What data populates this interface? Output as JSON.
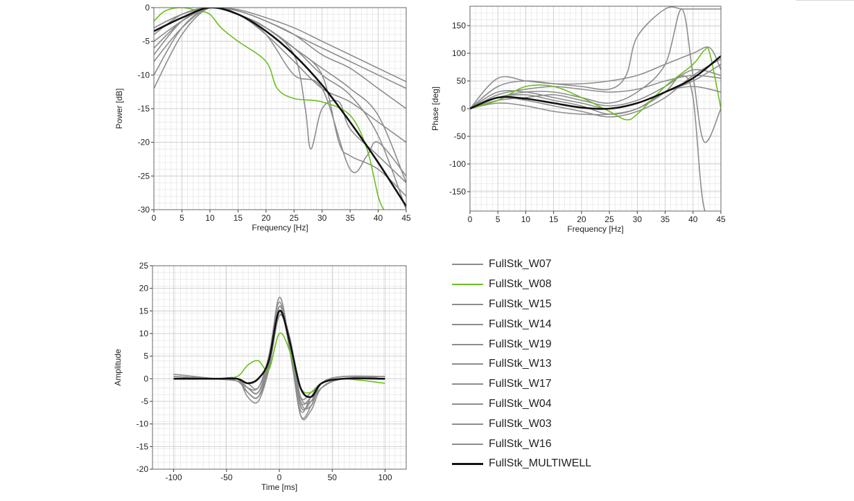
{
  "colors": {
    "gray": "#8c8c8c",
    "green": "#6abf1e",
    "black": "#111111",
    "grid_minor": "#e0e0e0",
    "grid_major": "#c8c8c8"
  },
  "legend": {
    "items": [
      {
        "label": "FullStk_W07",
        "color": "#8c8c8c"
      },
      {
        "label": "FullStk_W08",
        "color": "#6abf1e"
      },
      {
        "label": "FullStk_W15",
        "color": "#8c8c8c"
      },
      {
        "label": "FullStk_W14",
        "color": "#8c8c8c"
      },
      {
        "label": "FullStk_W19",
        "color": "#8c8c8c"
      },
      {
        "label": "FullStk_W13",
        "color": "#8c8c8c"
      },
      {
        "label": "FullStk_W17",
        "color": "#8c8c8c"
      },
      {
        "label": "FullStk_W04",
        "color": "#8c8c8c"
      },
      {
        "label": "FullStk_W03",
        "color": "#8c8c8c"
      },
      {
        "label": "FullStk_W16",
        "color": "#8c8c8c"
      },
      {
        "label": "FullStk_MULTIWELL",
        "color": "#111111"
      }
    ]
  },
  "chart_data": [
    {
      "id": "power",
      "type": "line",
      "xlabel": "Frequency [Hz]",
      "ylabel": "Power [dB]",
      "xlim": [
        0,
        45
      ],
      "ylim": [
        -30,
        0
      ],
      "xticks": [
        0,
        5,
        10,
        15,
        20,
        25,
        30,
        35,
        40,
        45
      ],
      "yticks": [
        0,
        -5,
        -10,
        -15,
        -20,
        -25,
        -30
      ],
      "grid": true,
      "series": [
        {
          "name": "FullStk_W07",
          "color": "#8c8c8c",
          "x": [
            0,
            5,
            10,
            15,
            20,
            25,
            30,
            35,
            40,
            45
          ],
          "y": [
            -3,
            -1,
            0,
            -0.5,
            -2,
            -4,
            -6,
            -8,
            -10,
            -12
          ]
        },
        {
          "name": "FullStk_W08",
          "color": "#6abf1e",
          "x": [
            0,
            2,
            5,
            8,
            10,
            12,
            15,
            20,
            22,
            25,
            30,
            35,
            38,
            40,
            41
          ],
          "y": [
            -2,
            -0.5,
            0,
            -0.5,
            -1,
            -3,
            -5,
            -8,
            -12,
            -13.5,
            -14,
            -16,
            -21,
            -28,
            -30
          ]
        },
        {
          "name": "FullStk_W15",
          "color": "#8c8c8c",
          "x": [
            0,
            5,
            10,
            15,
            20,
            25,
            27,
            28,
            30,
            33,
            35,
            40,
            45
          ],
          "y": [
            -10,
            -3,
            0,
            -1,
            -3,
            -7,
            -15,
            -21,
            -15,
            -14,
            -18,
            -22,
            -26
          ]
        },
        {
          "name": "FullStk_W14",
          "color": "#8c8c8c",
          "x": [
            0,
            5,
            10,
            15,
            20,
            25,
            30,
            35,
            38,
            40,
            45
          ],
          "y": [
            -12,
            -4,
            0,
            -1,
            -4,
            -10,
            -12,
            -24,
            -22,
            -20,
            -25
          ]
        },
        {
          "name": "FullStk_W19",
          "color": "#8c8c8c",
          "x": [
            0,
            5,
            10,
            15,
            20,
            25,
            30,
            35,
            40,
            45
          ],
          "y": [
            -6,
            -2,
            0,
            -1,
            -3,
            -6,
            -10,
            -13,
            -19,
            -30
          ]
        },
        {
          "name": "FullStk_W13",
          "color": "#8c8c8c",
          "x": [
            0,
            5,
            10,
            15,
            20,
            25,
            30,
            35,
            40,
            45
          ],
          "y": [
            -4,
            -1,
            0,
            -1,
            -3,
            -6,
            -9,
            -12,
            -16,
            -26
          ]
        },
        {
          "name": "FullStk_W17",
          "color": "#8c8c8c",
          "x": [
            0,
            5,
            10,
            15,
            20,
            25,
            30,
            35,
            40,
            45
          ],
          "y": [
            -5,
            -2,
            0,
            -0.5,
            -2,
            -4,
            -7,
            -9,
            -12,
            -15
          ]
        },
        {
          "name": "FullStk_W04",
          "color": "#8c8c8c",
          "x": [
            0,
            5,
            10,
            15,
            20,
            25,
            30,
            33,
            35,
            40,
            45
          ],
          "y": [
            -8,
            -3,
            0,
            -1,
            -3,
            -6,
            -10,
            -20,
            -22,
            -24,
            -28
          ]
        },
        {
          "name": "FullStk_W03",
          "color": "#8c8c8c",
          "x": [
            0,
            5,
            10,
            15,
            20,
            25,
            30,
            35,
            40,
            45
          ],
          "y": [
            -3,
            -1,
            0,
            -0.3,
            -1.5,
            -3,
            -5,
            -7,
            -9,
            -11
          ]
        },
        {
          "name": "FullStk_W16",
          "color": "#8c8c8c",
          "x": [
            0,
            5,
            10,
            15,
            20,
            25,
            30,
            35,
            40,
            45
          ],
          "y": [
            -7,
            -2,
            0,
            -1,
            -4,
            -8,
            -12,
            -14,
            -17,
            -20
          ]
        },
        {
          "name": "FullStk_MULTIWELL",
          "color": "#111111",
          "x": [
            0,
            5,
            10,
            15,
            20,
            25,
            30,
            35,
            40,
            45
          ],
          "y": [
            -3.5,
            -1.5,
            0,
            -1,
            -3.5,
            -7,
            -11.5,
            -17,
            -23,
            -29.5
          ]
        }
      ]
    },
    {
      "id": "phase",
      "type": "line",
      "xlabel": "Frequency [Hz]",
      "ylabel": "Phase [deg]",
      "xlim": [
        0,
        45
      ],
      "ylim": [
        -185,
        185
      ],
      "xticks": [
        0,
        5,
        10,
        15,
        20,
        25,
        30,
        35,
        40,
        45
      ],
      "yticks": [
        150,
        100,
        50,
        0,
        -50,
        -100,
        -150
      ],
      "grid": true,
      "series": [
        {
          "name": "FullStk_W07",
          "color": "#8c8c8c",
          "x": [
            0,
            5,
            10,
            15,
            20,
            25,
            28,
            30,
            35,
            38,
            40,
            42,
            45
          ],
          "y": [
            0,
            40,
            50,
            45,
            40,
            35,
            60,
            130,
            180,
            180,
            180,
            180,
            180
          ]
        },
        {
          "name": "FullStk_W08",
          "color": "#6abf1e",
          "x": [
            0,
            5,
            10,
            15,
            20,
            25,
            28,
            30,
            35,
            40,
            42,
            43,
            45
          ],
          "y": [
            0,
            15,
            40,
            40,
            20,
            -5,
            -20,
            -10,
            40,
            80,
            105,
            100,
            0
          ]
        },
        {
          "name": "FullStk_W15",
          "color": "#8c8c8c",
          "x": [
            0,
            5,
            10,
            15,
            20,
            25,
            30,
            35,
            38,
            40,
            42,
            45
          ],
          "y": [
            0,
            20,
            30,
            30,
            20,
            10,
            30,
            80,
            180,
            60,
            -60,
            0
          ]
        },
        {
          "name": "FullStk_W14",
          "color": "#8c8c8c",
          "x": [
            0,
            5,
            10,
            15,
            20,
            25,
            30,
            35,
            40,
            43,
            45
          ],
          "y": [
            0,
            55,
            50,
            45,
            45,
            50,
            60,
            80,
            100,
            110,
            70
          ]
        },
        {
          "name": "FullStk_W19",
          "color": "#8c8c8c",
          "x": [
            0,
            5,
            10,
            15,
            20,
            25,
            30,
            35,
            40,
            45
          ],
          "y": [
            0,
            30,
            30,
            20,
            10,
            0,
            10,
            30,
            50,
            80
          ]
        },
        {
          "name": "FullStk_W13",
          "color": "#8c8c8c",
          "x": [
            0,
            5,
            10,
            15,
            20,
            25,
            30,
            35,
            38,
            40,
            42,
            45
          ],
          "y": [
            0,
            10,
            5,
            -5,
            -10,
            -10,
            0,
            30,
            60,
            20,
            -180,
            -185
          ]
        },
        {
          "name": "FullStk_W17",
          "color": "#8c8c8c",
          "x": [
            0,
            5,
            10,
            15,
            20,
            25,
            30,
            35,
            40,
            45
          ],
          "y": [
            0,
            15,
            20,
            25,
            15,
            5,
            15,
            40,
            70,
            60
          ]
        },
        {
          "name": "FullStk_W04",
          "color": "#8c8c8c",
          "x": [
            0,
            5,
            10,
            15,
            20,
            25,
            30,
            35,
            40,
            45
          ],
          "y": [
            0,
            20,
            25,
            15,
            5,
            -10,
            0,
            30,
            40,
            30
          ]
        },
        {
          "name": "FullStk_W03",
          "color": "#8c8c8c",
          "x": [
            0,
            5,
            10,
            15,
            20,
            25,
            30,
            35,
            40,
            45
          ],
          "y": [
            0,
            25,
            35,
            40,
            35,
            30,
            35,
            50,
            60,
            55
          ]
        },
        {
          "name": "FullStk_W16",
          "color": "#8c8c8c",
          "x": [
            0,
            5,
            10,
            15,
            20,
            25,
            30,
            35,
            40,
            45
          ],
          "y": [
            0,
            20,
            15,
            5,
            -5,
            -15,
            -5,
            20,
            60,
            90
          ]
        },
        {
          "name": "FullStk_MULTIWELL",
          "color": "#111111",
          "x": [
            0,
            5,
            10,
            15,
            20,
            25,
            30,
            35,
            40,
            45
          ],
          "y": [
            0,
            20,
            18,
            10,
            2,
            0,
            10,
            30,
            55,
            95
          ]
        }
      ]
    },
    {
      "id": "amplitude",
      "type": "line",
      "xlabel": "Time [ms]",
      "ylabel": "Amplitude",
      "xlim": [
        -120,
        120
      ],
      "ylim": [
        -20,
        25
      ],
      "xticks": [
        -100,
        -50,
        0,
        50,
        100
      ],
      "yticks": [
        25,
        20,
        15,
        10,
        5,
        0,
        -5,
        -10,
        -15,
        -20
      ],
      "grid": true,
      "series": [
        {
          "name": "FullStk_W07",
          "color": "#8c8c8c",
          "x": [
            -100,
            -60,
            -40,
            -30,
            -20,
            -10,
            0,
            10,
            20,
            30,
            40,
            60,
            100
          ],
          "y": [
            0.5,
            0,
            -0.5,
            -3,
            -4,
            3,
            16,
            8,
            -6,
            -5,
            -1,
            0.5,
            0
          ]
        },
        {
          "name": "FullStk_W08",
          "color": "#6abf1e",
          "x": [
            -100,
            -60,
            -40,
            -30,
            -20,
            -10,
            0,
            10,
            20,
            30,
            40,
            60,
            100
          ],
          "y": [
            0,
            0,
            0.5,
            3,
            4,
            2,
            10,
            6,
            -2,
            -3,
            -1,
            0,
            -1
          ]
        },
        {
          "name": "FullStk_W15",
          "color": "#8c8c8c",
          "x": [
            -100,
            -60,
            -40,
            -30,
            -20,
            -10,
            0,
            10,
            20,
            30,
            40,
            60,
            100
          ],
          "y": [
            1,
            0,
            -0.5,
            -2,
            -3,
            4,
            18,
            7,
            -8,
            -6,
            -1,
            0.5,
            0.5
          ]
        },
        {
          "name": "FullStk_W14",
          "color": "#8c8c8c",
          "x": [
            -100,
            -60,
            -40,
            -30,
            -20,
            -10,
            0,
            10,
            20,
            30,
            40,
            60,
            100
          ],
          "y": [
            0,
            0,
            0,
            -4,
            -5,
            2,
            14,
            9,
            -4,
            -5,
            -2,
            0,
            0
          ]
        },
        {
          "name": "FullStk_W19",
          "color": "#8c8c8c",
          "x": [
            -100,
            -60,
            -40,
            -30,
            -20,
            -10,
            0,
            10,
            20,
            30,
            40,
            60,
            100
          ],
          "y": [
            0.5,
            0,
            0,
            -1,
            -2,
            5,
            17,
            6,
            -7,
            -4,
            -1,
            0,
            0
          ]
        },
        {
          "name": "FullStk_W13",
          "color": "#8c8c8c",
          "x": [
            -100,
            -60,
            -40,
            -30,
            -20,
            -10,
            0,
            10,
            20,
            30,
            40,
            60,
            100
          ],
          "y": [
            0,
            0,
            0,
            -3,
            -4,
            3,
            15,
            8,
            -8,
            -7,
            -2,
            0,
            0.5
          ]
        },
        {
          "name": "FullStk_W17",
          "color": "#8c8c8c",
          "x": [
            -100,
            -60,
            -40,
            -30,
            -20,
            -10,
            0,
            10,
            20,
            30,
            40,
            60,
            100
          ],
          "y": [
            0.5,
            0,
            0,
            -2,
            -3,
            4,
            16,
            7,
            -5,
            -4,
            -1,
            0,
            0
          ]
        },
        {
          "name": "FullStk_W04",
          "color": "#8c8c8c",
          "x": [
            -100,
            -60,
            -40,
            -30,
            -20,
            -10,
            0,
            10,
            20,
            30,
            40,
            60,
            100
          ],
          "y": [
            0,
            0,
            0,
            -3,
            -4,
            2,
            14,
            9,
            -5,
            -6,
            -1,
            0,
            0
          ]
        },
        {
          "name": "FullStk_W03",
          "color": "#8c8c8c",
          "x": [
            -100,
            -60,
            -40,
            -30,
            -20,
            -10,
            0,
            10,
            20,
            30,
            40,
            60,
            100
          ],
          "y": [
            0.5,
            0,
            0,
            -2,
            -2,
            4,
            15,
            7,
            -4,
            -3,
            -1,
            0,
            0
          ]
        },
        {
          "name": "FullStk_W16",
          "color": "#8c8c8c",
          "x": [
            -100,
            -60,
            -40,
            -30,
            -20,
            -10,
            0,
            10,
            20,
            30,
            40,
            60,
            100
          ],
          "y": [
            0,
            0,
            0,
            -2,
            -3,
            3,
            14,
            8,
            -6,
            -5,
            -2,
            0,
            0
          ]
        },
        {
          "name": "FullStk_MULTIWELL",
          "color": "#111111",
          "x": [
            -100,
            -60,
            -40,
            -30,
            -20,
            -10,
            0,
            10,
            20,
            30,
            40,
            60,
            100
          ],
          "y": [
            0,
            0,
            0,
            -1,
            0,
            4,
            15,
            8,
            -2,
            -4,
            -1,
            0,
            0
          ]
        }
      ]
    }
  ]
}
